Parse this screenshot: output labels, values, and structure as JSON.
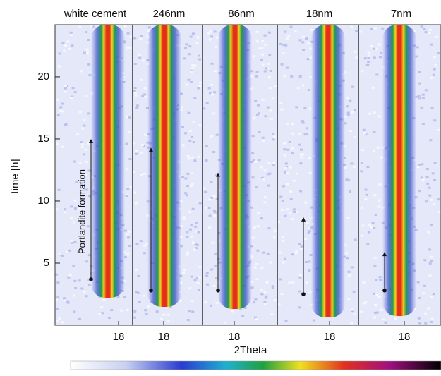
{
  "chart_data": {
    "type": "panels",
    "ylabel": "time [h]",
    "xlabel": "2Theta",
    "ylim": [
      0,
      24.2
    ],
    "yticks": [
      5,
      10,
      15,
      20
    ],
    "annotation": "Portlandite formation",
    "panels": [
      {
        "name": "white cement",
        "xtick": 18,
        "formation": [
          3.7,
          15
        ]
      },
      {
        "name": "246nm",
        "xtick": 18,
        "formation": [
          2.8,
          14.3
        ]
      },
      {
        "name": "86nm",
        "xtick": 18,
        "formation": [
          2.8,
          12.3
        ]
      },
      {
        "name": "18nm",
        "xtick": 18,
        "formation": [
          2.5,
          8.7
        ]
      },
      {
        "name": "7nm",
        "xtick": 18,
        "formation": [
          2.8,
          5.9
        ]
      }
    ]
  }
}
